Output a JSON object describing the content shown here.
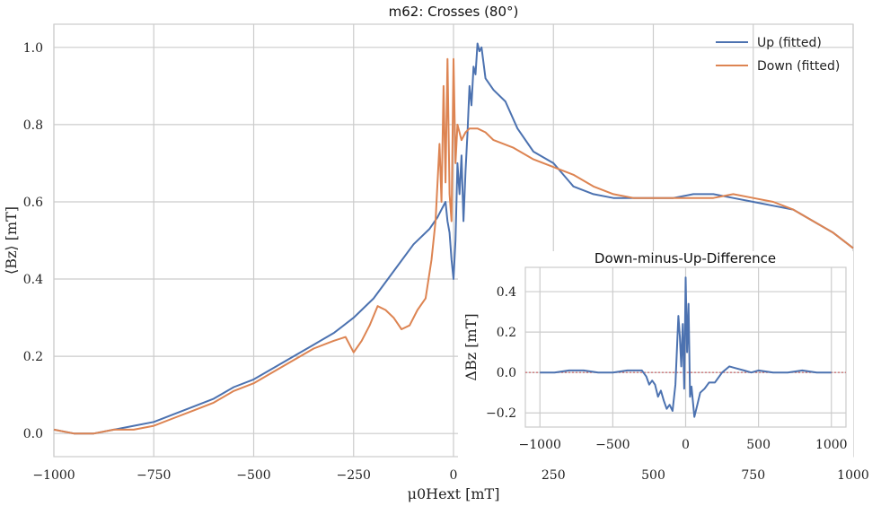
{
  "chart_data": [
    {
      "type": "line",
      "title": "m62: Crosses (80°)",
      "xlabel": "μ0Hext [mT]",
      "ylabel": "⟨Bz⟩ [mT]",
      "xlim": [
        -1000,
        1000
      ],
      "ylim": [
        -0.06,
        1.06
      ],
      "xticks": [
        "−1000",
        "−750",
        "−500",
        "−250",
        "0",
        "250",
        "500",
        "750",
        "1000"
      ],
      "yticks": [
        "0.0",
        "0.2",
        "0.4",
        "0.6",
        "0.8",
        "1.0"
      ],
      "grid": true,
      "legend": "top-right",
      "series": [
        {
          "name": "Up (fitted)",
          "color": "#4c72b0",
          "x": [
            -1000,
            -950,
            -900,
            -850,
            -800,
            -750,
            -700,
            -650,
            -600,
            -550,
            -500,
            -450,
            -400,
            -350,
            -300,
            -250,
            -200,
            -150,
            -100,
            -60,
            -40,
            -30,
            -20,
            -15,
            -10,
            -5,
            0,
            5,
            10,
            15,
            20,
            25,
            30,
            35,
            40,
            45,
            50,
            55,
            60,
            65,
            70,
            80,
            100,
            130,
            160,
            200,
            250,
            300,
            350,
            400,
            450,
            500,
            550,
            600,
            650,
            700,
            750,
            800,
            850,
            900,
            950,
            1000
          ],
          "y": [
            0.01,
            0.0,
            0.0,
            0.01,
            0.02,
            0.03,
            0.05,
            0.07,
            0.09,
            0.12,
            0.14,
            0.17,
            0.2,
            0.23,
            0.26,
            0.3,
            0.35,
            0.42,
            0.49,
            0.53,
            0.56,
            0.58,
            0.6,
            0.55,
            0.52,
            0.45,
            0.4,
            0.5,
            0.7,
            0.62,
            0.72,
            0.55,
            0.68,
            0.78,
            0.9,
            0.85,
            0.95,
            0.93,
            1.01,
            0.99,
            1.0,
            0.92,
            0.89,
            0.86,
            0.79,
            0.73,
            0.7,
            0.64,
            0.62,
            0.61,
            0.61,
            0.61,
            0.61,
            0.62,
            0.62,
            0.61,
            0.6,
            0.59,
            0.58,
            0.55,
            0.52,
            0.48
          ]
        },
        {
          "name": "Down (fitted)",
          "color": "#dd8452",
          "x": [
            -1000,
            -950,
            -900,
            -850,
            -800,
            -750,
            -700,
            -650,
            -600,
            -550,
            -500,
            -450,
            -400,
            -350,
            -300,
            -270,
            -250,
            -230,
            -210,
            -190,
            -170,
            -150,
            -130,
            -110,
            -90,
            -70,
            -55,
            -45,
            -35,
            -30,
            -25,
            -20,
            -15,
            -10,
            -5,
            0,
            5,
            10,
            20,
            30,
            40,
            60,
            80,
            100,
            150,
            200,
            250,
            300,
            350,
            400,
            450,
            500,
            550,
            600,
            650,
            700,
            750,
            800,
            850,
            900,
            950,
            1000
          ],
          "y": [
            0.01,
            0.0,
            0.0,
            0.01,
            0.01,
            0.02,
            0.04,
            0.06,
            0.08,
            0.11,
            0.13,
            0.16,
            0.19,
            0.22,
            0.24,
            0.25,
            0.21,
            0.24,
            0.28,
            0.33,
            0.32,
            0.3,
            0.27,
            0.28,
            0.32,
            0.35,
            0.45,
            0.55,
            0.75,
            0.6,
            0.9,
            0.65,
            0.97,
            0.62,
            0.55,
            0.97,
            0.7,
            0.8,
            0.76,
            0.78,
            0.79,
            0.79,
            0.78,
            0.76,
            0.74,
            0.71,
            0.69,
            0.67,
            0.64,
            0.62,
            0.61,
            0.61,
            0.61,
            0.61,
            0.61,
            0.62,
            0.61,
            0.6,
            0.58,
            0.55,
            0.52,
            0.48
          ]
        }
      ]
    },
    {
      "type": "line",
      "title": "Down-minus-Up-Difference",
      "xlabel": "",
      "ylabel": "ΔBz [mT]",
      "xlim": [
        -1100,
        1100
      ],
      "ylim": [
        -0.27,
        0.52
      ],
      "xticks": [
        "−1000",
        "−500",
        "0",
        "500",
        "1000"
      ],
      "yticks": [
        "−0.2",
        "0.0",
        "0.2",
        "0.4"
      ],
      "grid": true,
      "zero_line_color": "#c44e52",
      "series": [
        {
          "name": "",
          "color": "#4c72b0",
          "x": [
            -1000,
            -900,
            -800,
            -700,
            -600,
            -500,
            -400,
            -300,
            -270,
            -250,
            -230,
            -210,
            -190,
            -170,
            -150,
            -130,
            -110,
            -90,
            -70,
            -50,
            -40,
            -30,
            -20,
            -10,
            0,
            10,
            20,
            30,
            40,
            60,
            80,
            100,
            130,
            160,
            200,
            250,
            300,
            350,
            400,
            450,
            500,
            600,
            700,
            800,
            900,
            1000
          ],
          "y": [
            0.0,
            0.0,
            0.01,
            0.01,
            0.0,
            0.0,
            0.01,
            0.01,
            -0.02,
            -0.06,
            -0.04,
            -0.06,
            -0.12,
            -0.09,
            -0.14,
            -0.18,
            -0.16,
            -0.19,
            -0.06,
            0.28,
            0.18,
            0.03,
            0.24,
            -0.08,
            0.47,
            0.1,
            0.34,
            -0.12,
            -0.07,
            -0.22,
            -0.16,
            -0.1,
            -0.08,
            -0.05,
            -0.05,
            0.0,
            0.03,
            0.02,
            0.01,
            0.0,
            0.01,
            0.0,
            0.0,
            0.01,
            0.0,
            0.0
          ]
        }
      ]
    }
  ]
}
